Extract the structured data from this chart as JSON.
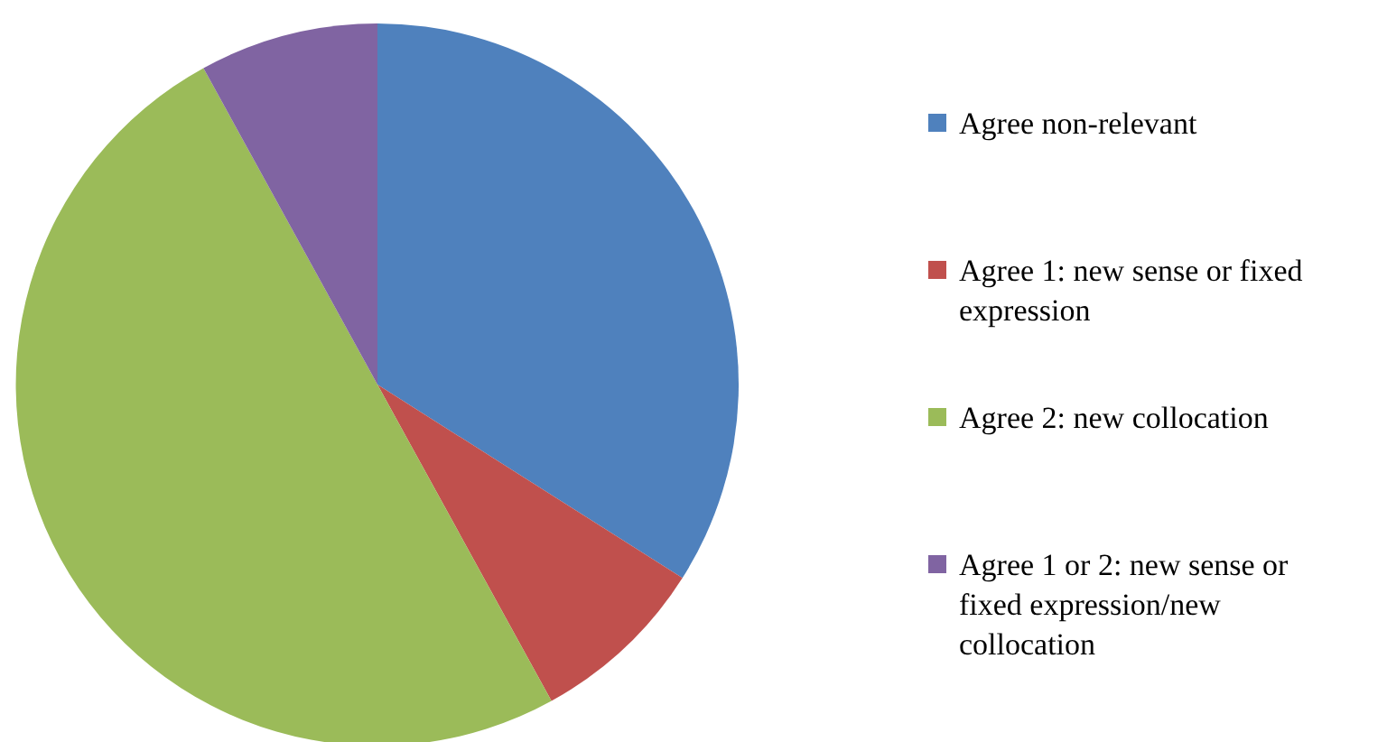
{
  "chart_data": {
    "type": "pie",
    "categories": [
      "Agree non-relevant",
      "Agree 1: new sense or fixed expression",
      "Agree 2: new collocation",
      "Agree 1 or 2: new sense or fixed expression/new collocation"
    ],
    "values": [
      34,
      8,
      50,
      8
    ],
    "colors": [
      "#4f81bd",
      "#c0504d",
      "#9bbb59",
      "#8064a2"
    ],
    "legend": "right"
  }
}
